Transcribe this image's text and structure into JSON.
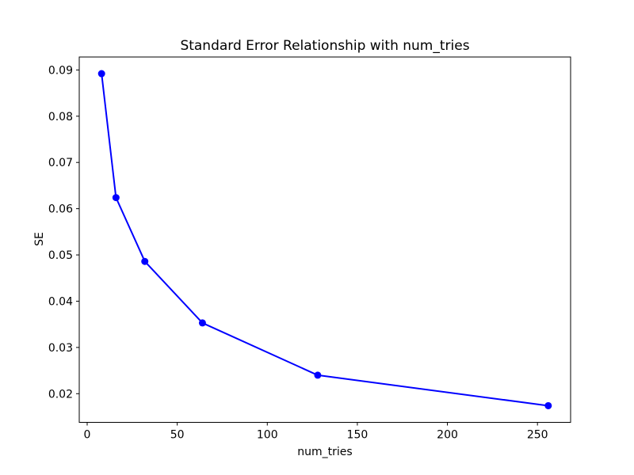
{
  "figure": {
    "background": "#ffffff"
  },
  "chart_data": {
    "type": "line",
    "title": "Standard Error Relationship with num_tries",
    "xlabel": "num_tries",
    "ylabel": "SE",
    "x": [
      8,
      16,
      32,
      64,
      128,
      256
    ],
    "y": [
      0.0892,
      0.0624,
      0.0486,
      0.0353,
      0.024,
      0.0174
    ],
    "xticks": [
      0,
      50,
      100,
      150,
      200,
      250
    ],
    "xtick_labels": [
      "0",
      "50",
      "100",
      "150",
      "200",
      "250"
    ],
    "yticks": [
      0.02,
      0.03,
      0.04,
      0.05,
      0.06,
      0.07,
      0.08,
      0.09
    ],
    "ytick_labels": [
      "0.02",
      "0.03",
      "0.04",
      "0.05",
      "0.06",
      "0.07",
      "0.08",
      "0.09"
    ],
    "xlim": [
      -4.4,
      268.4
    ],
    "ylim": [
      0.0138,
      0.0928
    ],
    "grid": false,
    "legend": null,
    "line_color": "#0000ff",
    "marker": "circle",
    "spine_color": "#000000"
  }
}
